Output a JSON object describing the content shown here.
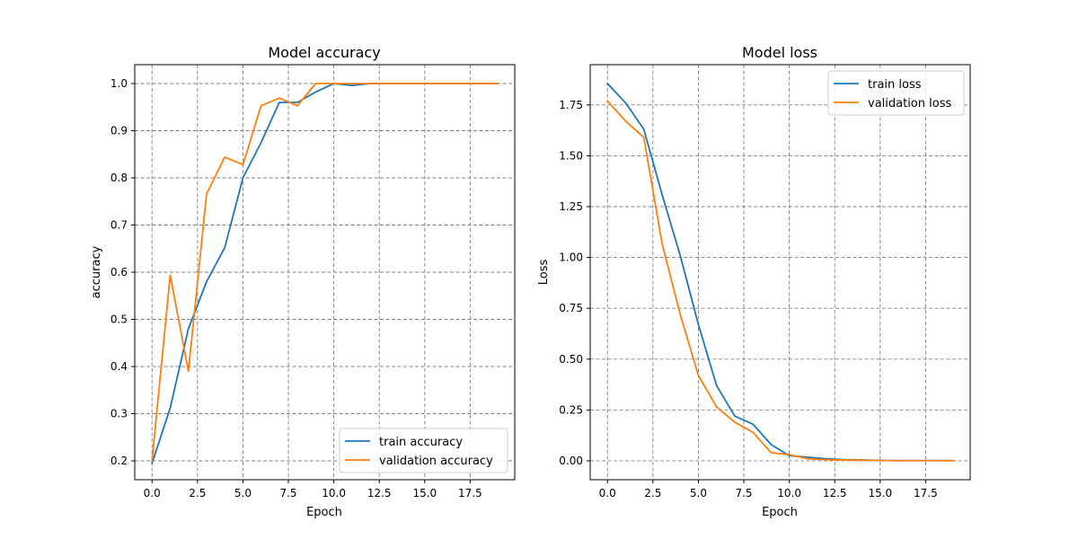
{
  "chart_data": [
    {
      "type": "line",
      "title": "Model accuracy",
      "xlabel": "Epoch",
      "ylabel": "accuracy",
      "xlim": [
        -0.95,
        19.95
      ],
      "ylim": [
        0.16,
        1.04
      ],
      "xticks": [
        0,
        2.5,
        5,
        7.5,
        10,
        12.5,
        15,
        17.5
      ],
      "xtick_labels": [
        "0.0",
        "2.5",
        "5.0",
        "7.5",
        "10.0",
        "12.5",
        "15.0",
        "17.5"
      ],
      "yticks": [
        0.2,
        0.3,
        0.4,
        0.5,
        0.6,
        0.7,
        0.8,
        0.9,
        1.0
      ],
      "ytick_labels": [
        "0.2",
        "0.3",
        "0.4",
        "0.5",
        "0.6",
        "0.7",
        "0.8",
        "0.9",
        "1.0"
      ],
      "grid": true,
      "legend_position": "lower-right",
      "x": [
        0,
        1,
        2,
        3,
        4,
        5,
        6,
        7,
        8,
        9,
        10,
        11,
        12,
        13,
        14,
        15,
        16,
        17,
        18,
        19
      ],
      "series": [
        {
          "name": "train accuracy",
          "color": "#1f77b4",
          "values": [
            0.195,
            0.312,
            0.48,
            0.58,
            0.652,
            0.8,
            0.875,
            0.96,
            0.96,
            0.982,
            1.0,
            0.996,
            1.0,
            1.0,
            1.0,
            1.0,
            1.0,
            1.0,
            1.0,
            1.0
          ]
        },
        {
          "name": "validation accuracy",
          "color": "#ff7f0e",
          "values": [
            0.2,
            0.594,
            0.39,
            0.766,
            0.844,
            0.828,
            0.953,
            0.969,
            0.953,
            1.0,
            1.0,
            1.0,
            1.0,
            1.0,
            1.0,
            1.0,
            1.0,
            1.0,
            1.0,
            1.0
          ]
        }
      ]
    },
    {
      "type": "line",
      "title": "Model loss",
      "xlabel": "Epoch",
      "ylabel": "Loss",
      "xlim": [
        -0.95,
        19.95
      ],
      "ylim": [
        -0.093,
        1.948
      ],
      "xticks": [
        0,
        2.5,
        5,
        7.5,
        10,
        12.5,
        15,
        17.5
      ],
      "xtick_labels": [
        "0.0",
        "2.5",
        "5.0",
        "7.5",
        "10.0",
        "12.5",
        "15.0",
        "17.5"
      ],
      "yticks": [
        0,
        0.25,
        0.5,
        0.75,
        1.0,
        1.25,
        1.5,
        1.75
      ],
      "ytick_labels": [
        "0.00",
        "0.25",
        "0.50",
        "0.75",
        "1.00",
        "1.25",
        "1.50",
        "1.75"
      ],
      "grid": true,
      "legend_position": "upper-right",
      "x": [
        0,
        1,
        2,
        3,
        4,
        5,
        6,
        7,
        8,
        9,
        10,
        11,
        12,
        13,
        14,
        15,
        16,
        17,
        18,
        19
      ],
      "series": [
        {
          "name": "train loss",
          "color": "#1f77b4",
          "values": [
            1.855,
            1.76,
            1.63,
            1.31,
            1.01,
            0.67,
            0.37,
            0.22,
            0.18,
            0.08,
            0.025,
            0.018,
            0.01,
            0.006,
            0.004,
            0.002,
            0.001,
            0.001,
            0.001,
            0.001
          ]
        },
        {
          "name": "validation loss",
          "color": "#ff7f0e",
          "values": [
            1.77,
            1.67,
            1.59,
            1.07,
            0.72,
            0.42,
            0.265,
            0.19,
            0.14,
            0.04,
            0.03,
            0.01,
            0.006,
            0.004,
            0.003,
            0.002,
            0.001,
            0.001,
            0.001,
            0.001
          ]
        }
      ]
    }
  ]
}
